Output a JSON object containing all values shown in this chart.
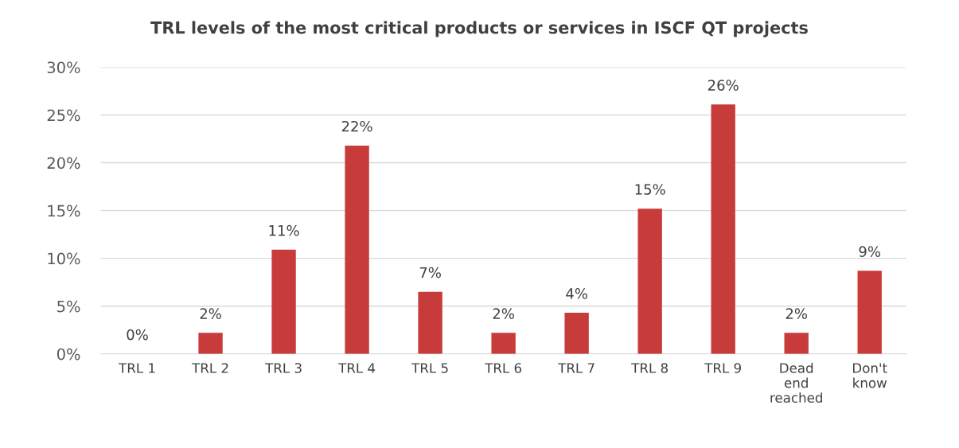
{
  "chart_data": {
    "type": "bar",
    "title": "TRL levels of the most critical products or services in ISCF QT projects",
    "categories": [
      "TRL 1",
      "TRL 2",
      "TRL 3",
      "TRL 4",
      "TRL 5",
      "TRL 6",
      "TRL 7",
      "TRL 8",
      "TRL 9",
      "Dead\nend\nreached",
      "Don't\nknow"
    ],
    "values": [
      0,
      2.2,
      10.9,
      21.8,
      6.5,
      2.2,
      4.3,
      15.2,
      26.1,
      2.2,
      8.7
    ],
    "value_labels": [
      "0%",
      "2%",
      "11%",
      "22%",
      "7%",
      "2%",
      "4%",
      "15%",
      "26%",
      "2%",
      "9%"
    ],
    "color": "#c83b3b",
    "ylim": [
      0,
      30
    ],
    "yticks": [
      {
        "value": 0,
        "label": "0%"
      },
      {
        "value": 5,
        "label": "5%"
      },
      {
        "value": 10,
        "label": "10%"
      },
      {
        "value": 15,
        "label": "15%"
      },
      {
        "value": 20,
        "label": "20%"
      },
      {
        "value": 25,
        "label": "25%"
      },
      {
        "value": 30,
        "label": "30%"
      }
    ],
    "grid": "y"
  }
}
